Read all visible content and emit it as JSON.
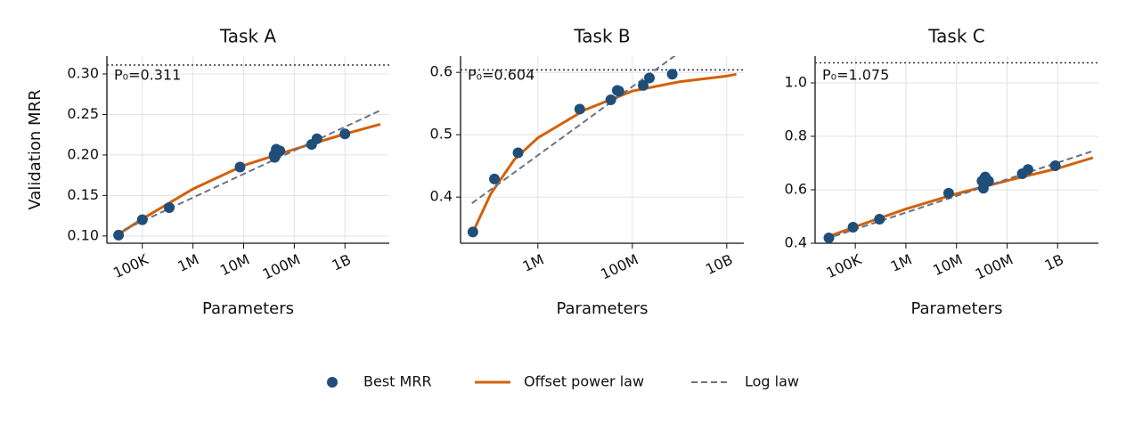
{
  "chart_data": [
    {
      "type": "scatter",
      "title": "Task A",
      "xlabel": "Parameters",
      "ylabel": "Validation MRR",
      "log_x": true,
      "grid": true,
      "xlim": [
        20000,
        7500000000
      ],
      "ylim": [
        0.091,
        0.322
      ],
      "xticks": [
        {
          "value": 100000,
          "label": "100K"
        },
        {
          "value": 1000000,
          "label": "1M"
        },
        {
          "value": 10000000,
          "label": "10M"
        },
        {
          "value": 100000000,
          "label": "100M"
        },
        {
          "value": 1000000000,
          "label": "1B"
        }
      ],
      "yticks": [
        {
          "value": 0.1,
          "label": "0.10"
        },
        {
          "value": 0.15,
          "label": "0.15"
        },
        {
          "value": 0.2,
          "label": "0.20"
        },
        {
          "value": 0.25,
          "label": "0.25"
        },
        {
          "value": 0.3,
          "label": "0.30"
        }
      ],
      "p0": 0.311,
      "annotation": "P₀=0.311",
      "series": [
        {
          "name": "Best MRR",
          "kind": "points",
          "color": "#1f4e79",
          "x": [
            34000,
            100000,
            340000,
            8500000,
            40000000,
            41000000,
            44000000,
            52000000,
            220000000,
            280000000,
            1000000000
          ],
          "values": [
            0.101,
            0.12,
            0.135,
            0.185,
            0.2,
            0.197,
            0.207,
            0.205,
            0.213,
            0.22,
            0.226
          ]
        },
        {
          "name": "Offset power law",
          "kind": "line",
          "color": "#d2610a",
          "x": [
            30000,
            100000,
            1000000,
            10000000,
            100000000,
            1000000000,
            5000000000
          ],
          "values": [
            0.1,
            0.121,
            0.158,
            0.187,
            0.207,
            0.226,
            0.238
          ]
        },
        {
          "name": "Log law",
          "kind": "dashed",
          "color": "#6b7283",
          "x": [
            30000,
            5000000000
          ],
          "values": [
            0.103,
            0.255
          ]
        }
      ]
    },
    {
      "type": "scatter",
      "title": "Task B",
      "xlabel": "Parameters",
      "log_x": true,
      "grid": true,
      "xlim": [
        23000,
        23000000000
      ],
      "ylim": [
        0.326,
        0.626
      ],
      "xticks": [
        {
          "value": 1000000,
          "label": "1M"
        },
        {
          "value": 100000000,
          "label": "100M"
        },
        {
          "value": 10000000000,
          "label": "10B"
        }
      ],
      "yticks": [
        0.4,
        0.5,
        0.6
      ],
      "p0": 0.604,
      "annotation": "P₀=0.604",
      "series": [
        {
          "name": "Best MRR",
          "kind": "points",
          "color": "#1f4e79",
          "x": [
            42000,
            120000,
            380000,
            7700000,
            35000000,
            48000000,
            52000000,
            170000000,
            230000000,
            700000000
          ],
          "values": [
            0.344,
            0.429,
            0.471,
            0.541,
            0.556,
            0.571,
            0.57,
            0.579,
            0.591,
            0.597
          ]
        },
        {
          "name": "Offset power law",
          "kind": "line",
          "color": "#d2610a",
          "x": [
            40000,
            100000,
            316000,
            1000000,
            10000000,
            100000000,
            1000000000,
            10000000000,
            16000000000
          ],
          "values": [
            0.34,
            0.405,
            0.46,
            0.495,
            0.54,
            0.57,
            0.585,
            0.594,
            0.597
          ]
        },
        {
          "name": "Log law",
          "kind": "dashed",
          "color": "#6b7283",
          "x": [
            40000,
            1000000000
          ],
          "values": [
            0.39,
            0.632
          ]
        }
      ]
    },
    {
      "type": "scatter",
      "title": "Task C",
      "xlabel": "Parameters",
      "log_x": true,
      "grid": true,
      "xlim": [
        16000,
        6400000000
      ],
      "ylim": [
        0.4,
        1.1
      ],
      "xticks": [
        {
          "value": 100000,
          "label": "100K"
        },
        {
          "value": 1000000,
          "label": "1M"
        },
        {
          "value": 10000000,
          "label": "10M"
        },
        {
          "value": 100000000,
          "label": "100M"
        },
        {
          "value": 1000000000,
          "label": "1B"
        }
      ],
      "yticks": [
        0.4,
        0.6,
        0.8,
        {
          "value": 1.0,
          "label": "1.0"
        }
      ],
      "p0": 1.075,
      "annotation": "P₀=1.075",
      "series": [
        {
          "name": "Best MRR",
          "kind": "points",
          "color": "#1f4e79",
          "x": [
            30000,
            90000,
            300000,
            7000000,
            32000000,
            34000000,
            37000000,
            43000000,
            200000000,
            260000000,
            900000000
          ],
          "values": [
            0.42,
            0.46,
            0.49,
            0.587,
            0.633,
            0.606,
            0.648,
            0.633,
            0.66,
            0.676,
            0.69
          ]
        },
        {
          "name": "Offset power law",
          "kind": "line",
          "color": "#d2610a",
          "x": [
            25000,
            100000,
            1000000,
            10000000,
            100000000,
            1000000000,
            5000000000
          ],
          "values": [
            0.42,
            0.462,
            0.528,
            0.585,
            0.634,
            0.68,
            0.72
          ]
        },
        {
          "name": "Log law",
          "kind": "dashed",
          "color": "#6b7283",
          "x": [
            25000,
            5000000000
          ],
          "values": [
            0.415,
            0.745
          ]
        }
      ]
    }
  ]
}
